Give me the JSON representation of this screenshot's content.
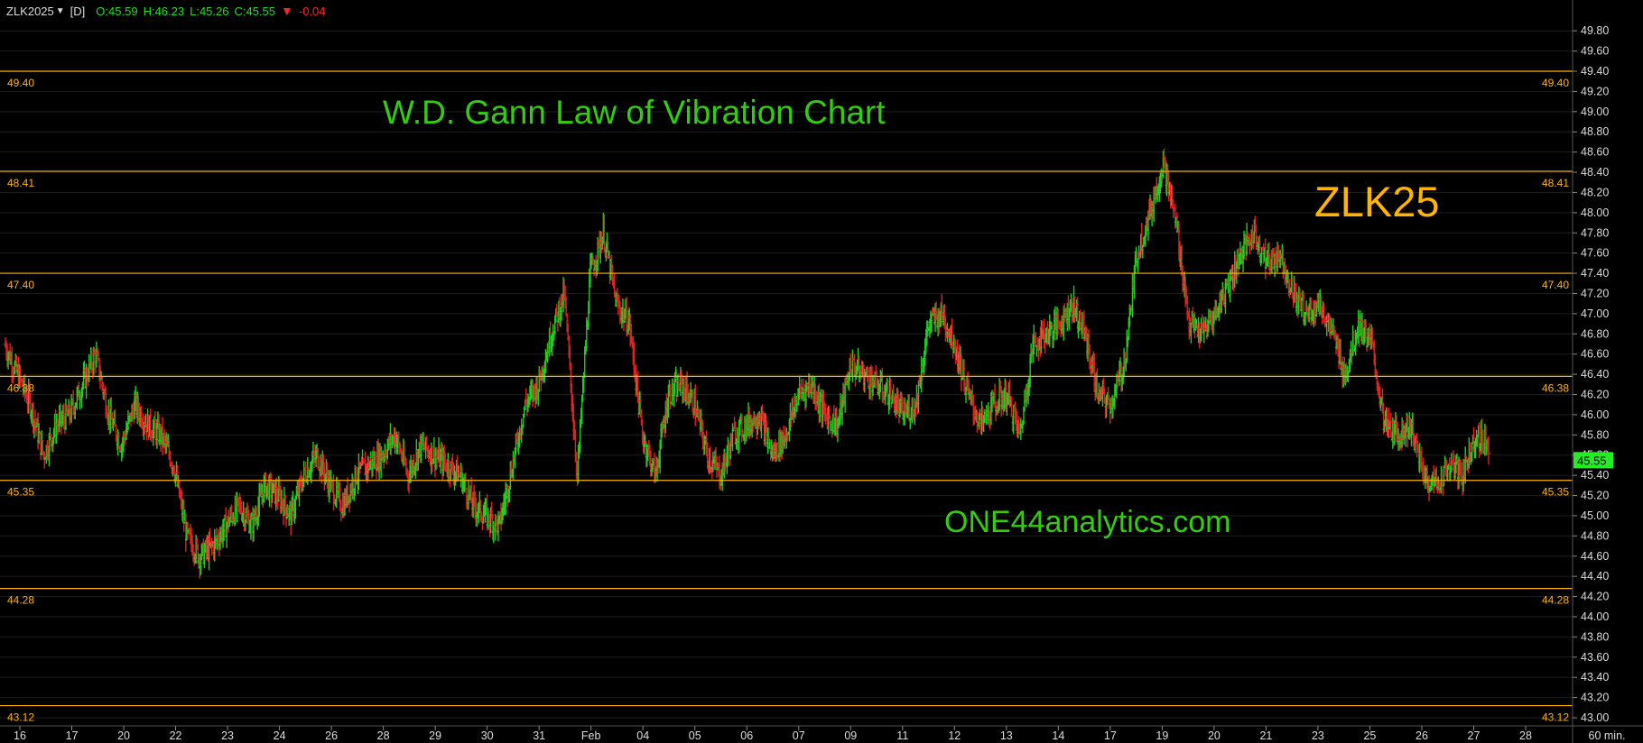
{
  "header": {
    "symbol": "ZLK2025",
    "timeframe": "[D]",
    "open": "O:45.59",
    "high": "H:46.23",
    "low": "L:45.26",
    "close": "C:45.55",
    "change": "-0.04",
    "change_direction": "down"
  },
  "annotations": {
    "title": "W.D. Gann Law of Vibration Chart",
    "symbol": "ZLK25",
    "website": "ONE44analytics.com"
  },
  "colors": {
    "background": "#000000",
    "up_bar": "#22cc22",
    "down_bar": "#dd2222",
    "level_line": "#ffb400",
    "axis_text": "#dddddd",
    "grid": "#1e1e1e",
    "last_price_bg": "#22ee22"
  },
  "chart_data": {
    "type": "ohlc-bar",
    "interval_label": "60 min.",
    "ylim": [
      43.0,
      49.9
    ],
    "y_ticks": [
      "49.80",
      "49.60",
      "49.40",
      "49.20",
      "49.00",
      "48.80",
      "48.60",
      "48.40",
      "48.20",
      "48.00",
      "47.80",
      "47.60",
      "47.40",
      "47.20",
      "47.00",
      "46.80",
      "46.60",
      "46.40",
      "46.20",
      "46.00",
      "45.80",
      "45.60",
      "45.40",
      "45.20",
      "45.00",
      "44.80",
      "44.60",
      "44.40",
      "44.20",
      "44.00",
      "43.80",
      "43.60",
      "43.40",
      "43.20",
      "43.00"
    ],
    "x_ticks": [
      "16",
      "17",
      "20",
      "22",
      "23",
      "24",
      "26",
      "28",
      "29",
      "30",
      "31",
      "Feb",
      "04",
      "05",
      "06",
      "07",
      "09",
      "11",
      "12",
      "13",
      "14",
      "17",
      "19",
      "20",
      "21",
      "23",
      "25",
      "26",
      "27",
      "28"
    ],
    "last_price": "45.55",
    "levels": [
      {
        "value": 49.4,
        "label": "49.40"
      },
      {
        "value": 48.41,
        "label": "48.41"
      },
      {
        "value": 47.4,
        "label": "47.40"
      },
      {
        "value": 46.38,
        "label": "46.38"
      },
      {
        "value": 45.35,
        "label": "45.35"
      },
      {
        "value": 44.28,
        "label": "44.28"
      },
      {
        "value": 43.12,
        "label": "43.12"
      }
    ],
    "price_path": [
      46.7,
      46.4,
      46.1,
      45.6,
      45.9,
      46.0,
      46.3,
      46.6,
      46.0,
      45.7,
      46.1,
      45.9,
      45.8,
      45.5,
      44.8,
      44.6,
      44.7,
      44.9,
      45.1,
      44.9,
      45.3,
      45.2,
      45.0,
      45.4,
      45.6,
      45.3,
      45.1,
      45.4,
      45.5,
      45.6,
      45.8,
      45.4,
      45.7,
      45.6,
      45.5,
      45.4,
      45.1,
      45.0,
      44.9,
      45.5,
      46.1,
      46.3,
      46.8,
      47.2,
      45.4,
      47.4,
      47.8,
      47.1,
      46.9,
      45.8,
      45.4,
      46.2,
      46.3,
      46.1,
      45.6,
      45.4,
      45.8,
      45.9,
      46.0,
      45.6,
      45.8,
      46.2,
      46.3,
      46.0,
      45.9,
      46.5,
      46.4,
      46.3,
      46.2,
      46.0,
      46.1,
      46.9,
      47.0,
      46.7,
      46.2,
      45.9,
      46.1,
      46.2,
      45.8,
      46.7,
      46.8,
      46.9,
      47.1,
      46.8,
      46.2,
      46.1,
      46.5,
      47.6,
      48.0,
      48.5,
      47.9,
      46.9,
      46.8,
      47.0,
      47.3,
      47.6,
      47.8,
      47.5,
      47.6,
      47.2,
      47.0,
      47.1,
      46.8,
      46.4,
      46.9,
      46.7,
      45.9,
      45.8,
      45.9,
      45.4,
      45.3,
      45.5,
      45.4,
      45.8,
      45.7
    ]
  }
}
